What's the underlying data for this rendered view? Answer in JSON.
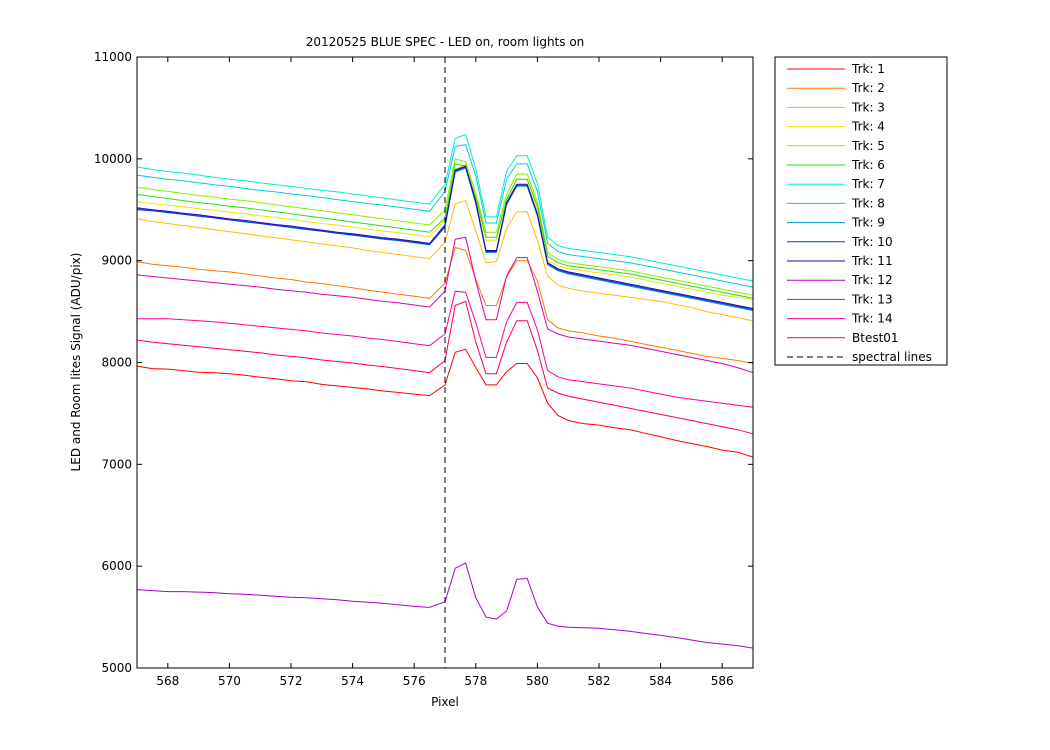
{
  "chart_data": {
    "type": "line",
    "title": "20120525 BLUE SPEC - LED on, room lights on",
    "xlabel": "Pixel",
    "ylabel": "LED and Room lites Signal (ADU/pix)",
    "xlim": [
      567,
      587
    ],
    "ylim": [
      5000,
      11000
    ],
    "xticks": [
      568,
      570,
      572,
      574,
      576,
      578,
      580,
      582,
      584,
      586
    ],
    "yticks": [
      5000,
      6000,
      7000,
      8000,
      9000,
      10000,
      11000
    ],
    "grid": false,
    "legend_position": "outside-right",
    "vline": {
      "x": 577.0,
      "name": "spectral lines",
      "color": "#000000",
      "style": "dashed"
    },
    "x": [
      567.0,
      567.5,
      568.0,
      568.5,
      569.0,
      569.5,
      570.0,
      570.5,
      571.0,
      571.5,
      572.0,
      572.5,
      573.0,
      573.5,
      574.0,
      574.5,
      575.0,
      575.5,
      576.0,
      576.5,
      577.0,
      577.33,
      577.67,
      578.0,
      578.33,
      578.67,
      579.0,
      579.33,
      579.67,
      580.0,
      580.33,
      580.67,
      581.0,
      581.5,
      582.0,
      582.5,
      583.0,
      583.5,
      584.0,
      584.5,
      585.0,
      585.5,
      586.0,
      586.5,
      587.0
    ],
    "series": [
      {
        "name": "Trk: 1",
        "color": "#ff0000",
        "values": [
          7965,
          7940,
          7935,
          7920,
          7905,
          7900,
          7890,
          7875,
          7855,
          7840,
          7820,
          7810,
          7785,
          7770,
          7755,
          7740,
          7720,
          7705,
          7690,
          7675,
          7780,
          8100,
          8130,
          7950,
          7780,
          7780,
          7910,
          7990,
          7990,
          7850,
          7600,
          7480,
          7430,
          7400,
          7385,
          7360,
          7340,
          7305,
          7270,
          7235,
          7205,
          7175,
          7140,
          7120,
          7070
        ]
      },
      {
        "name": "Trk: 2",
        "color": "#ff7700",
        "values": [
          8990,
          8965,
          8950,
          8935,
          8915,
          8900,
          8890,
          8870,
          8850,
          8830,
          8815,
          8790,
          8775,
          8755,
          8735,
          8710,
          8690,
          8670,
          8650,
          8630,
          8780,
          9130,
          9100,
          8820,
          8560,
          8560,
          8840,
          9000,
          9000,
          8800,
          8420,
          8340,
          8310,
          8290,
          8260,
          8240,
          8210,
          8180,
          8150,
          8120,
          8090,
          8060,
          8040,
          8020,
          7990
        ]
      },
      {
        "name": "Trk: 3",
        "color": "#ffbb00",
        "values": [
          9410,
          9385,
          9365,
          9345,
          9325,
          9305,
          9285,
          9265,
          9245,
          9225,
          9205,
          9185,
          9165,
          9145,
          9125,
          9100,
          9080,
          9060,
          9040,
          9020,
          9180,
          9560,
          9590,
          9290,
          8980,
          8990,
          9320,
          9480,
          9480,
          9200,
          8850,
          8760,
          8730,
          8700,
          8680,
          8660,
          8640,
          8620,
          8600,
          8570,
          8540,
          8500,
          8470,
          8440,
          8410
        ]
      },
      {
        "name": "Trk: 4",
        "color": "#e6e600",
        "values": [
          9580,
          9560,
          9545,
          9530,
          9510,
          9495,
          9475,
          9460,
          9440,
          9425,
          9405,
          9385,
          9365,
          9350,
          9330,
          9310,
          9290,
          9275,
          9255,
          9235,
          9400,
          9900,
          9950,
          9600,
          9200,
          9200,
          9600,
          9800,
          9800,
          9500,
          9000,
          8950,
          8920,
          8900,
          8880,
          8860,
          8840,
          8810,
          8780,
          8750,
          8720,
          8690,
          8660,
          8640,
          8620
        ]
      },
      {
        "name": "Trk: 5",
        "color": "#88ee00",
        "values": [
          9720,
          9700,
          9680,
          9660,
          9640,
          9625,
          9605,
          9590,
          9570,
          9550,
          9530,
          9510,
          9490,
          9470,
          9450,
          9430,
          9410,
          9390,
          9370,
          9350,
          9500,
          10000,
          9970,
          9660,
          9280,
          9280,
          9650,
          9850,
          9850,
          9580,
          9080,
          9010,
          8980,
          8960,
          8940,
          8920,
          8900,
          8870,
          8840,
          8810,
          8780,
          8750,
          8720,
          8690,
          8660
        ]
      },
      {
        "name": "Trk: 6",
        "color": "#22dd22",
        "values": [
          9650,
          9630,
          9610,
          9590,
          9570,
          9555,
          9535,
          9520,
          9500,
          9480,
          9460,
          9440,
          9420,
          9400,
          9380,
          9360,
          9340,
          9320,
          9300,
          9280,
          9420,
          9950,
          9930,
          9620,
          9230,
          9230,
          9600,
          9800,
          9800,
          9540,
          9040,
          8980,
          8950,
          8930,
          8910,
          8890,
          8870,
          8840,
          8810,
          8780,
          8750,
          8720,
          8690,
          8660,
          8630
        ]
      },
      {
        "name": "Trk: 7",
        "color": "#00eecc",
        "values": [
          9920,
          9895,
          9875,
          9860,
          9840,
          9820,
          9800,
          9785,
          9765,
          9745,
          9730,
          9710,
          9690,
          9675,
          9655,
          9635,
          9615,
          9595,
          9575,
          9555,
          9750,
          10200,
          10240,
          9900,
          9430,
          9430,
          9880,
          10030,
          10030,
          9760,
          9230,
          9150,
          9120,
          9100,
          9080,
          9060,
          9040,
          9010,
          8980,
          8950,
          8920,
          8890,
          8860,
          8830,
          8800
        ]
      },
      {
        "name": "Trk: 8",
        "color": "#00ccdd",
        "values": [
          9840,
          9820,
          9800,
          9785,
          9765,
          9745,
          9730,
          9710,
          9690,
          9675,
          9655,
          9640,
          9620,
          9600,
          9580,
          9560,
          9545,
          9525,
          9505,
          9485,
          9680,
          10120,
          10140,
          9830,
          9370,
          9370,
          9800,
          9950,
          9950,
          9680,
          9170,
          9090,
          9060,
          9040,
          9020,
          9000,
          8980,
          8950,
          8920,
          8890,
          8860,
          8830,
          8800,
          8770,
          8740
        ]
      },
      {
        "name": "Trk: 9",
        "color": "#0099cc",
        "values": [
          9510,
          9490,
          9470,
          9455,
          9435,
          9420,
          9400,
          9380,
          9365,
          9345,
          9325,
          9305,
          9290,
          9270,
          9250,
          9230,
          9210,
          9195,
          9175,
          9155,
          9330,
          9870,
          9910,
          9560,
          9080,
          9080,
          9550,
          9730,
          9730,
          9440,
          8960,
          8900,
          8870,
          8840,
          8810,
          8780,
          8750,
          8720,
          8690,
          8660,
          8630,
          8600,
          8570,
          8540,
          8510
        ]
      },
      {
        "name": "Trk: 10",
        "color": "#0033ee",
        "values": [
          9500,
          9490,
          9475,
          9455,
          9440,
          9420,
          9400,
          9385,
          9365,
          9345,
          9330,
          9310,
          9290,
          9270,
          9255,
          9235,
          9215,
          9200,
          9180,
          9160,
          9340,
          9880,
          9920,
          9570,
          9090,
          9090,
          9560,
          9740,
          9740,
          9450,
          8970,
          8910,
          8880,
          8850,
          8820,
          8790,
          8760,
          8730,
          8700,
          8670,
          8640,
          8610,
          8580,
          8550,
          8520
        ]
      },
      {
        "name": "Trk: 11",
        "color": "#330099",
        "values": [
          9520,
          9500,
          9485,
          9465,
          9450,
          9430,
          9410,
          9395,
          9375,
          9355,
          9340,
          9320,
          9300,
          9280,
          9265,
          9245,
          9225,
          9210,
          9190,
          9170,
          9350,
          9890,
          9930,
          9580,
          9100,
          9100,
          9570,
          9750,
          9750,
          9460,
          8980,
          8920,
          8890,
          8860,
          8830,
          8800,
          8770,
          8740,
          8710,
          8680,
          8650,
          8620,
          8590,
          8560,
          8530
        ]
      },
      {
        "name": "Trk: 12",
        "color": "#aa00cc",
        "values": [
          5770,
          5760,
          5750,
          5750,
          5745,
          5740,
          5730,
          5725,
          5715,
          5705,
          5695,
          5690,
          5680,
          5670,
          5655,
          5645,
          5635,
          5620,
          5605,
          5595,
          5650,
          5980,
          6030,
          5690,
          5500,
          5480,
          5560,
          5870,
          5880,
          5600,
          5440,
          5410,
          5400,
          5395,
          5390,
          5375,
          5360,
          5340,
          5320,
          5300,
          5275,
          5250,
          5235,
          5220,
          5195
        ]
      },
      {
        "name": "Trk: 13",
        "color": "#dd00aa",
        "values": [
          8860,
          8845,
          8830,
          8815,
          8800,
          8785,
          8770,
          8755,
          8740,
          8720,
          8705,
          8690,
          8670,
          8655,
          8640,
          8620,
          8600,
          8585,
          8565,
          8545,
          8700,
          9210,
          9230,
          8800,
          8420,
          8420,
          8850,
          9030,
          9030,
          8700,
          8330,
          8280,
          8250,
          8230,
          8210,
          8190,
          8170,
          8140,
          8110,
          8080,
          8050,
          8020,
          7990,
          7950,
          7900
        ]
      },
      {
        "name": "Trk: 14",
        "color": "#ff0099",
        "values": [
          8430,
          8430,
          8430,
          8420,
          8410,
          8400,
          8385,
          8370,
          8355,
          8340,
          8325,
          8310,
          8290,
          8275,
          8260,
          8240,
          8225,
          8205,
          8185,
          8165,
          8280,
          8700,
          8690,
          8390,
          8050,
          8050,
          8400,
          8590,
          8590,
          8320,
          7920,
          7860,
          7830,
          7810,
          7790,
          7770,
          7750,
          7720,
          7690,
          7660,
          7640,
          7620,
          7600,
          7580,
          7560
        ]
      },
      {
        "name": "Btest01",
        "color": "#ff0044",
        "values": [
          8220,
          8200,
          8185,
          8170,
          8155,
          8140,
          8125,
          8110,
          8095,
          8075,
          8060,
          8045,
          8025,
          8010,
          7995,
          7975,
          7960,
          7940,
          7920,
          7900,
          8020,
          8560,
          8600,
          8200,
          7890,
          7890,
          8200,
          8410,
          8410,
          8120,
          7750,
          7700,
          7670,
          7640,
          7610,
          7580,
          7550,
          7520,
          7490,
          7460,
          7430,
          7400,
          7370,
          7340,
          7300
        ]
      }
    ]
  }
}
